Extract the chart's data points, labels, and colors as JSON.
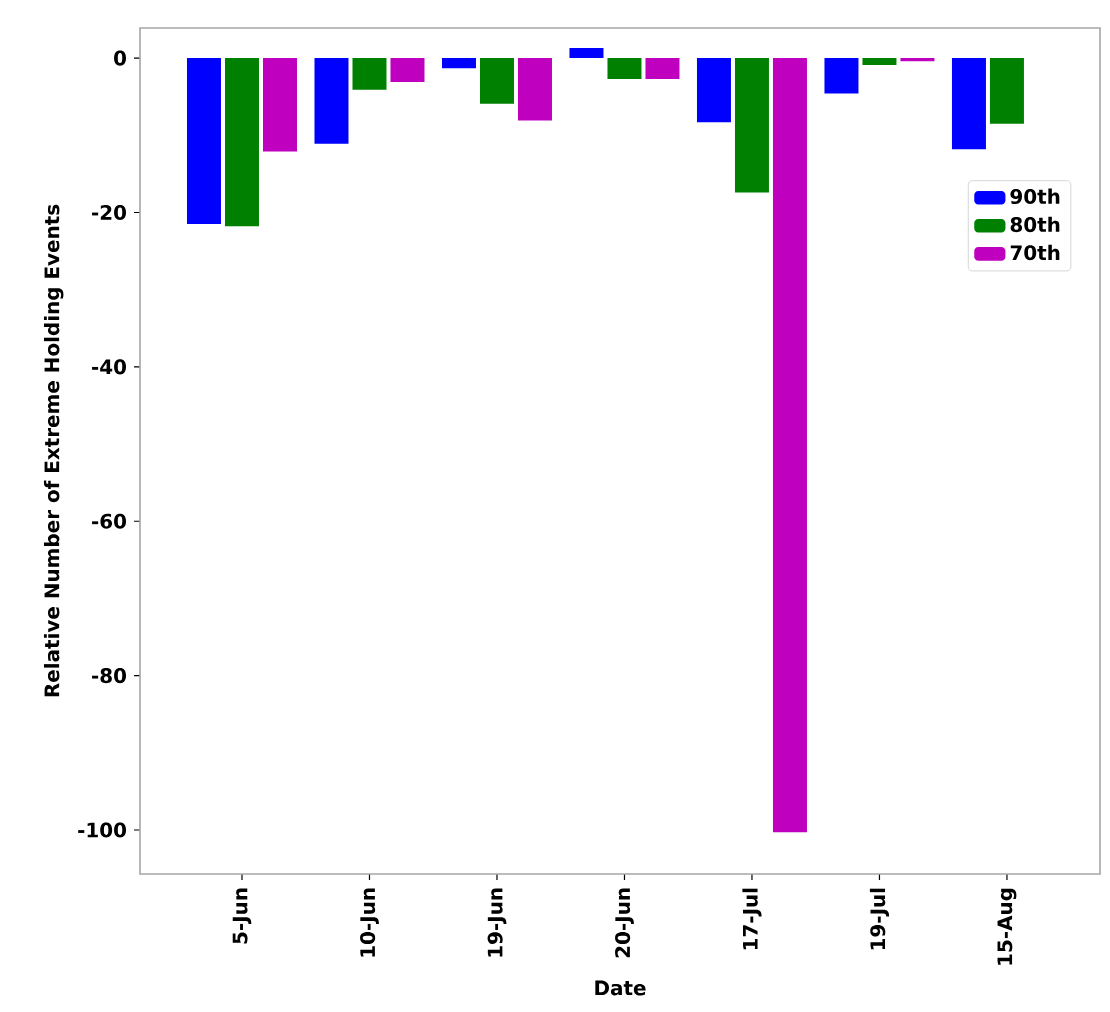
{
  "chart_data": {
    "type": "bar",
    "xlabel": "Date",
    "ylabel": "Relative Number of Extreme Holding Events",
    "categories": [
      "5-Jun",
      "10-Jun",
      "19-Jun",
      "20-Jun",
      "17-Jul",
      "19-Jul",
      "15-Aug"
    ],
    "series": [
      {
        "name": "90th",
        "color": "#0000ff",
        "values": [
          -21.5,
          -11.1,
          -1.3,
          1.3,
          -8.3,
          -4.6,
          -11.8
        ]
      },
      {
        "name": "80th",
        "color": "#008000",
        "values": [
          -21.8,
          -4.1,
          -5.9,
          -2.7,
          -17.4,
          -0.9,
          -8.5
        ]
      },
      {
        "name": "70th",
        "color": "#bf00bf",
        "values": [
          -12.1,
          -3.1,
          -8.1,
          -2.7,
          -100.3,
          -0.4,
          null
        ]
      }
    ],
    "ylim": [
      -105.7,
      3.9
    ],
    "yticks": [
      0,
      -20,
      -40,
      -60,
      -80,
      -100
    ],
    "legend": "top right",
    "grid": false
  }
}
